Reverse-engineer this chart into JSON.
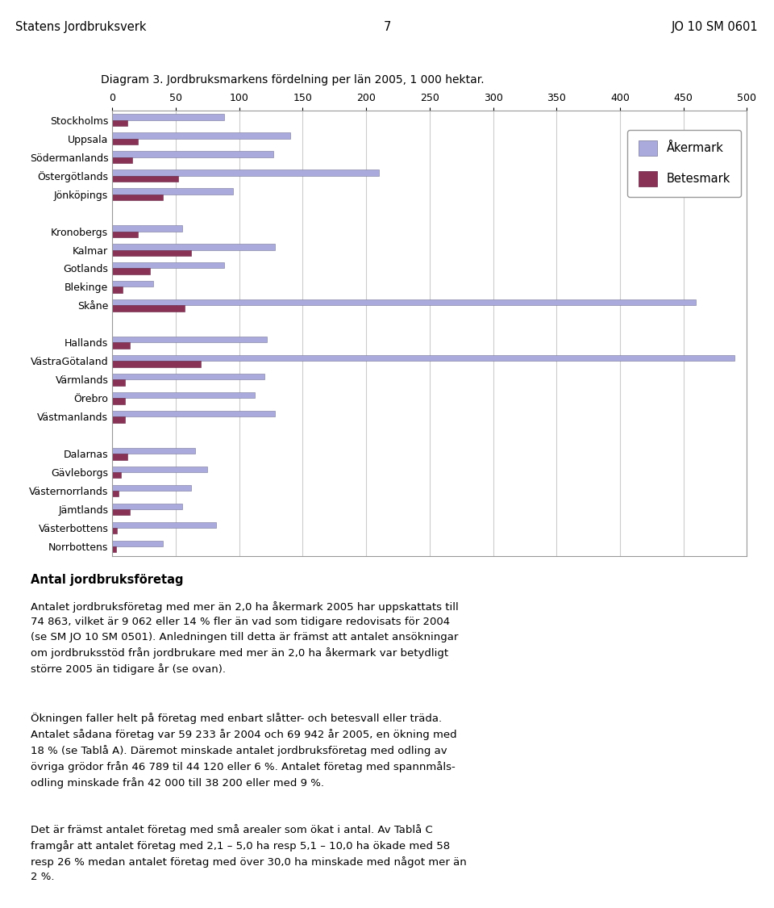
{
  "title": "Diagram 3. Jordbruksmarkens fördelning per län 2005, 1 000 hektar.",
  "header_left": "Statens Jordbruksverk",
  "header_center": "7",
  "header_right": "JO 10 SM 0601",
  "categories": [
    "Stockholms",
    "Uppsala",
    "Södermanlands",
    "Östergötlands",
    "Jönköpings",
    "",
    "Kronobergs",
    "Kalmar",
    "Gotlands",
    "Blekinge",
    "Skåne",
    "",
    "Hallands",
    "VästraGötaland",
    "Värmlands",
    "Örebro",
    "Västmanlands",
    "",
    "Dalarnas",
    "Gävleborgs",
    "Västernorrlands",
    "Jämtlands",
    "Västerbottens",
    "Norrbottens"
  ],
  "akermark": [
    88,
    140,
    127,
    210,
    95,
    0,
    55,
    128,
    88,
    32,
    460,
    0,
    122,
    490,
    120,
    112,
    128,
    0,
    65,
    75,
    62,
    55,
    82,
    40
  ],
  "betesmark": [
    12,
    20,
    16,
    52,
    40,
    0,
    20,
    62,
    30,
    8,
    57,
    0,
    14,
    70,
    10,
    10,
    10,
    0,
    12,
    7,
    5,
    14,
    4,
    3
  ],
  "akermark_color": "#aaaadd",
  "betesmark_color": "#883355",
  "xlim": [
    0,
    500
  ],
  "xticks": [
    0,
    50,
    100,
    150,
    200,
    250,
    300,
    350,
    400,
    450,
    500
  ],
  "legend_akermark": "Åkermark",
  "legend_betesmark": "Betesmark",
  "body_bold": "Antal jordbruksföretag",
  "body_para1": "Antalet jordbruksföretag med mer än 2,0 ha åkermark 2005 har uppskattats till\n74 863, vilket är 9 062 eller 14 % fler än vad som tidigare redovisats för 2004\n(se SM JO 10 SM 0501). Anledningen till detta är främst att antalet ansökningar\nom jordbruksstöd från jordbrukare med mer än 2,0 ha åkermark var betydligt\nstörre 2005 än tidigare år (se ovan).",
  "body_para2": "Ökningen faller helt på företag med enbart slåtter- och betesvall eller träda.\nAntalet sådana företag var 59 233 år 2004 och 69 942 år 2005, en ökning med\n18 % (se Tablå A). Däremot minskade antalet jordbruksföretag med odling av\növriga grödor från 46 789 til 44 120 eller 6 %. Antalet företag med spannmåls-\nodling minskade från 42 000 till 38 200 eller med 9 %.",
  "body_para3": "Det är främst antalet företag med små arealer som ökat i antal. Av Tablå C\nframgår att antalet företag med 2,1 – 5,0 ha resp 5,1 – 10,0 ha ökade med 58\nresp 26 % medan antalet företag med över 30,0 ha minskade med något mer än\n2 %.",
  "background_color": "#ffffff",
  "chart_bg_color": "#ffffff",
  "grid_color": "#cccccc",
  "bar_height": 0.32,
  "font_size": 9
}
